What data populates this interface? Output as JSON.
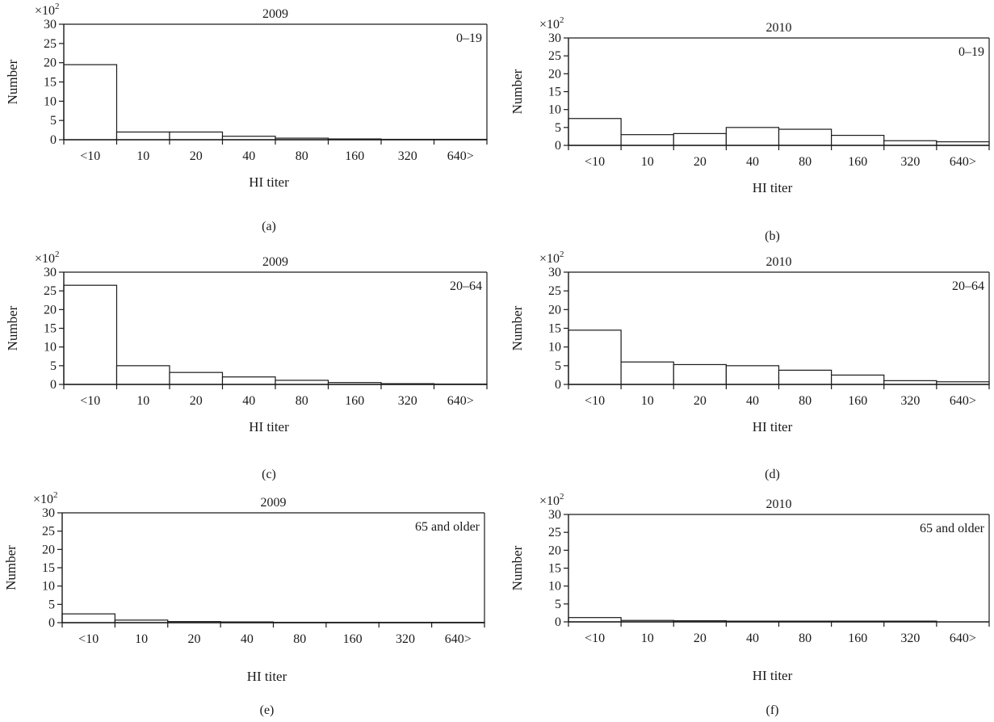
{
  "figure": {
    "panels_order": [
      "a",
      "b",
      "c",
      "d",
      "e",
      "f"
    ]
  },
  "chart_data": [
    {
      "panel": "(a)",
      "type": "bar",
      "title": "2009",
      "age_group": "0–19",
      "scale_note": "×10",
      "scale_exp": "2",
      "xlabel": "HI titer",
      "ylabel": "Number",
      "ylim": [
        0,
        30
      ],
      "yticks": [
        0,
        5,
        10,
        15,
        20,
        25,
        30
      ],
      "categories": [
        "<10",
        "10",
        "20",
        "40",
        "80",
        "160",
        "320",
        "640>"
      ],
      "values": [
        19.5,
        2.0,
        2.0,
        0.9,
        0.4,
        0.2,
        0.1,
        0.1
      ]
    },
    {
      "panel": "(b)",
      "type": "bar",
      "title": "2010",
      "age_group": "0–19",
      "scale_note": "×10",
      "scale_exp": "2",
      "xlabel": "HI titer",
      "ylabel": "Number",
      "ylim": [
        0,
        30
      ],
      "yticks": [
        0,
        5,
        10,
        15,
        20,
        25,
        30
      ],
      "categories": [
        "<10",
        "10",
        "20",
        "40",
        "80",
        "160",
        "320",
        "640>"
      ],
      "values": [
        7.5,
        3.0,
        3.3,
        5.0,
        4.5,
        2.8,
        1.3,
        1.0
      ]
    },
    {
      "panel": "(c)",
      "type": "bar",
      "title": "2009",
      "age_group": "20–64",
      "scale_note": "×10",
      "scale_exp": "2",
      "xlabel": "HI titer",
      "ylabel": "Number",
      "ylim": [
        0,
        30
      ],
      "yticks": [
        0,
        5,
        10,
        15,
        20,
        25,
        30
      ],
      "categories": [
        "<10",
        "10",
        "20",
        "40",
        "80",
        "160",
        "320",
        "640>"
      ],
      "values": [
        26.5,
        5.0,
        3.2,
        2.0,
        1.1,
        0.5,
        0.2,
        0.1
      ]
    },
    {
      "panel": "(d)",
      "type": "bar",
      "title": "2010",
      "age_group": "20–64",
      "scale_note": "×10",
      "scale_exp": "2",
      "xlabel": "HI titer",
      "ylabel": "Number",
      "ylim": [
        0,
        30
      ],
      "yticks": [
        0,
        5,
        10,
        15,
        20,
        25,
        30
      ],
      "categories": [
        "<10",
        "10",
        "20",
        "40",
        "80",
        "160",
        "320",
        "640>"
      ],
      "values": [
        14.5,
        6.0,
        5.3,
        5.0,
        3.8,
        2.5,
        1.0,
        0.7
      ]
    },
    {
      "panel": "(e)",
      "type": "bar",
      "title": "2009",
      "age_group": "65 and older",
      "scale_note": "×10",
      "scale_exp": "2",
      "xlabel": "HI titer",
      "ylabel": "Number",
      "ylim": [
        0,
        30
      ],
      "yticks": [
        0,
        5,
        10,
        15,
        20,
        25,
        30
      ],
      "categories": [
        "<10",
        "10",
        "20",
        "40",
        "80",
        "160",
        "320",
        "640>"
      ],
      "values": [
        2.4,
        0.7,
        0.3,
        0.2,
        0.1,
        0.1,
        0.1,
        0.1
      ]
    },
    {
      "panel": "(f)",
      "type": "bar",
      "title": "2010",
      "age_group": "65 and older",
      "scale_note": "×10",
      "scale_exp": "2",
      "xlabel": "HI titer",
      "ylabel": "Number",
      "ylim": [
        0,
        30
      ],
      "yticks": [
        0,
        5,
        10,
        15,
        20,
        25,
        30
      ],
      "categories": [
        "<10",
        "10",
        "20",
        "40",
        "80",
        "160",
        "320",
        "640>"
      ],
      "values": [
        1.2,
        0.4,
        0.3,
        0.2,
        0.2,
        0.2,
        0.2,
        0.0
      ]
    }
  ]
}
